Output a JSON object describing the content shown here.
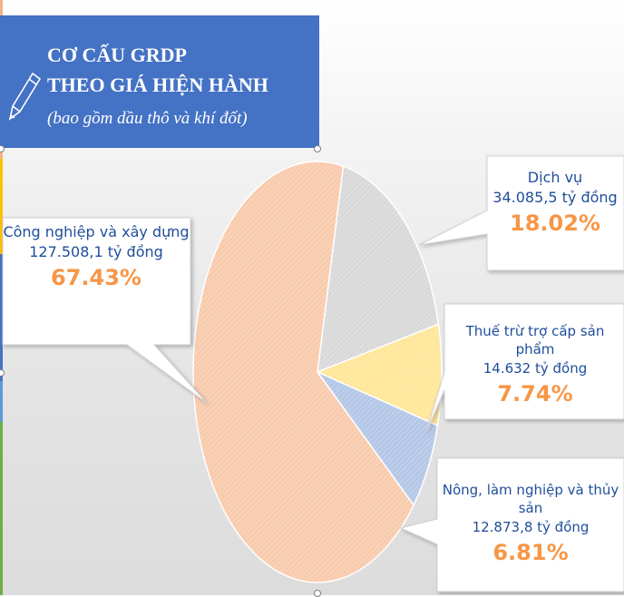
{
  "header": {
    "title_line1": "CƠ CẤU GRDP",
    "title_line2": "THEO GIÁ HIỆN HÀNH",
    "subtitle": "(bao gồm dầu thô và khí đốt)"
  },
  "colors": {
    "title_bg": "#4472c4",
    "label_text": "#1f4e9a",
    "percent_text": "#f79646",
    "slice_industry": "#f8cbad",
    "slice_services": "#d9d9d9",
    "slice_tax": "#ffe699",
    "slice_agriculture": "#b4c7e7"
  },
  "chart_data": {
    "type": "pie",
    "title": "CƠ CẤU GRDP THEO GIÁ HIỆN HÀNH (bao gồm dầu thô và khí đốt)",
    "unit": "tỷ đồng",
    "slices": [
      {
        "label": "Dịch vụ",
        "value_text": "34.085,5 tỷ đồng",
        "value": 34085.5,
        "percent": 18.02,
        "percent_text": "18.02%",
        "color": "#d9d9d9"
      },
      {
        "label": "Thuế trừ trợ cấp sản phẩm",
        "value_text": "14.632 tỷ đồng",
        "value": 14632,
        "percent": 7.74,
        "percent_text": "7.74%",
        "color": "#ffe699"
      },
      {
        "label": "Nông, làm nghiệp và thủy sản",
        "value_text": "12.873,8 tỷ đồng",
        "value": 12873.8,
        "percent": 6.81,
        "percent_text": "6.81%",
        "color": "#b4c7e7"
      },
      {
        "label": "Công nghiệp và xây dựng",
        "value_text": "127.508,1 tỷ đồng",
        "value": 127508.1,
        "percent": 67.43,
        "percent_text": "67.43%",
        "color": "#f8cbad"
      }
    ]
  }
}
